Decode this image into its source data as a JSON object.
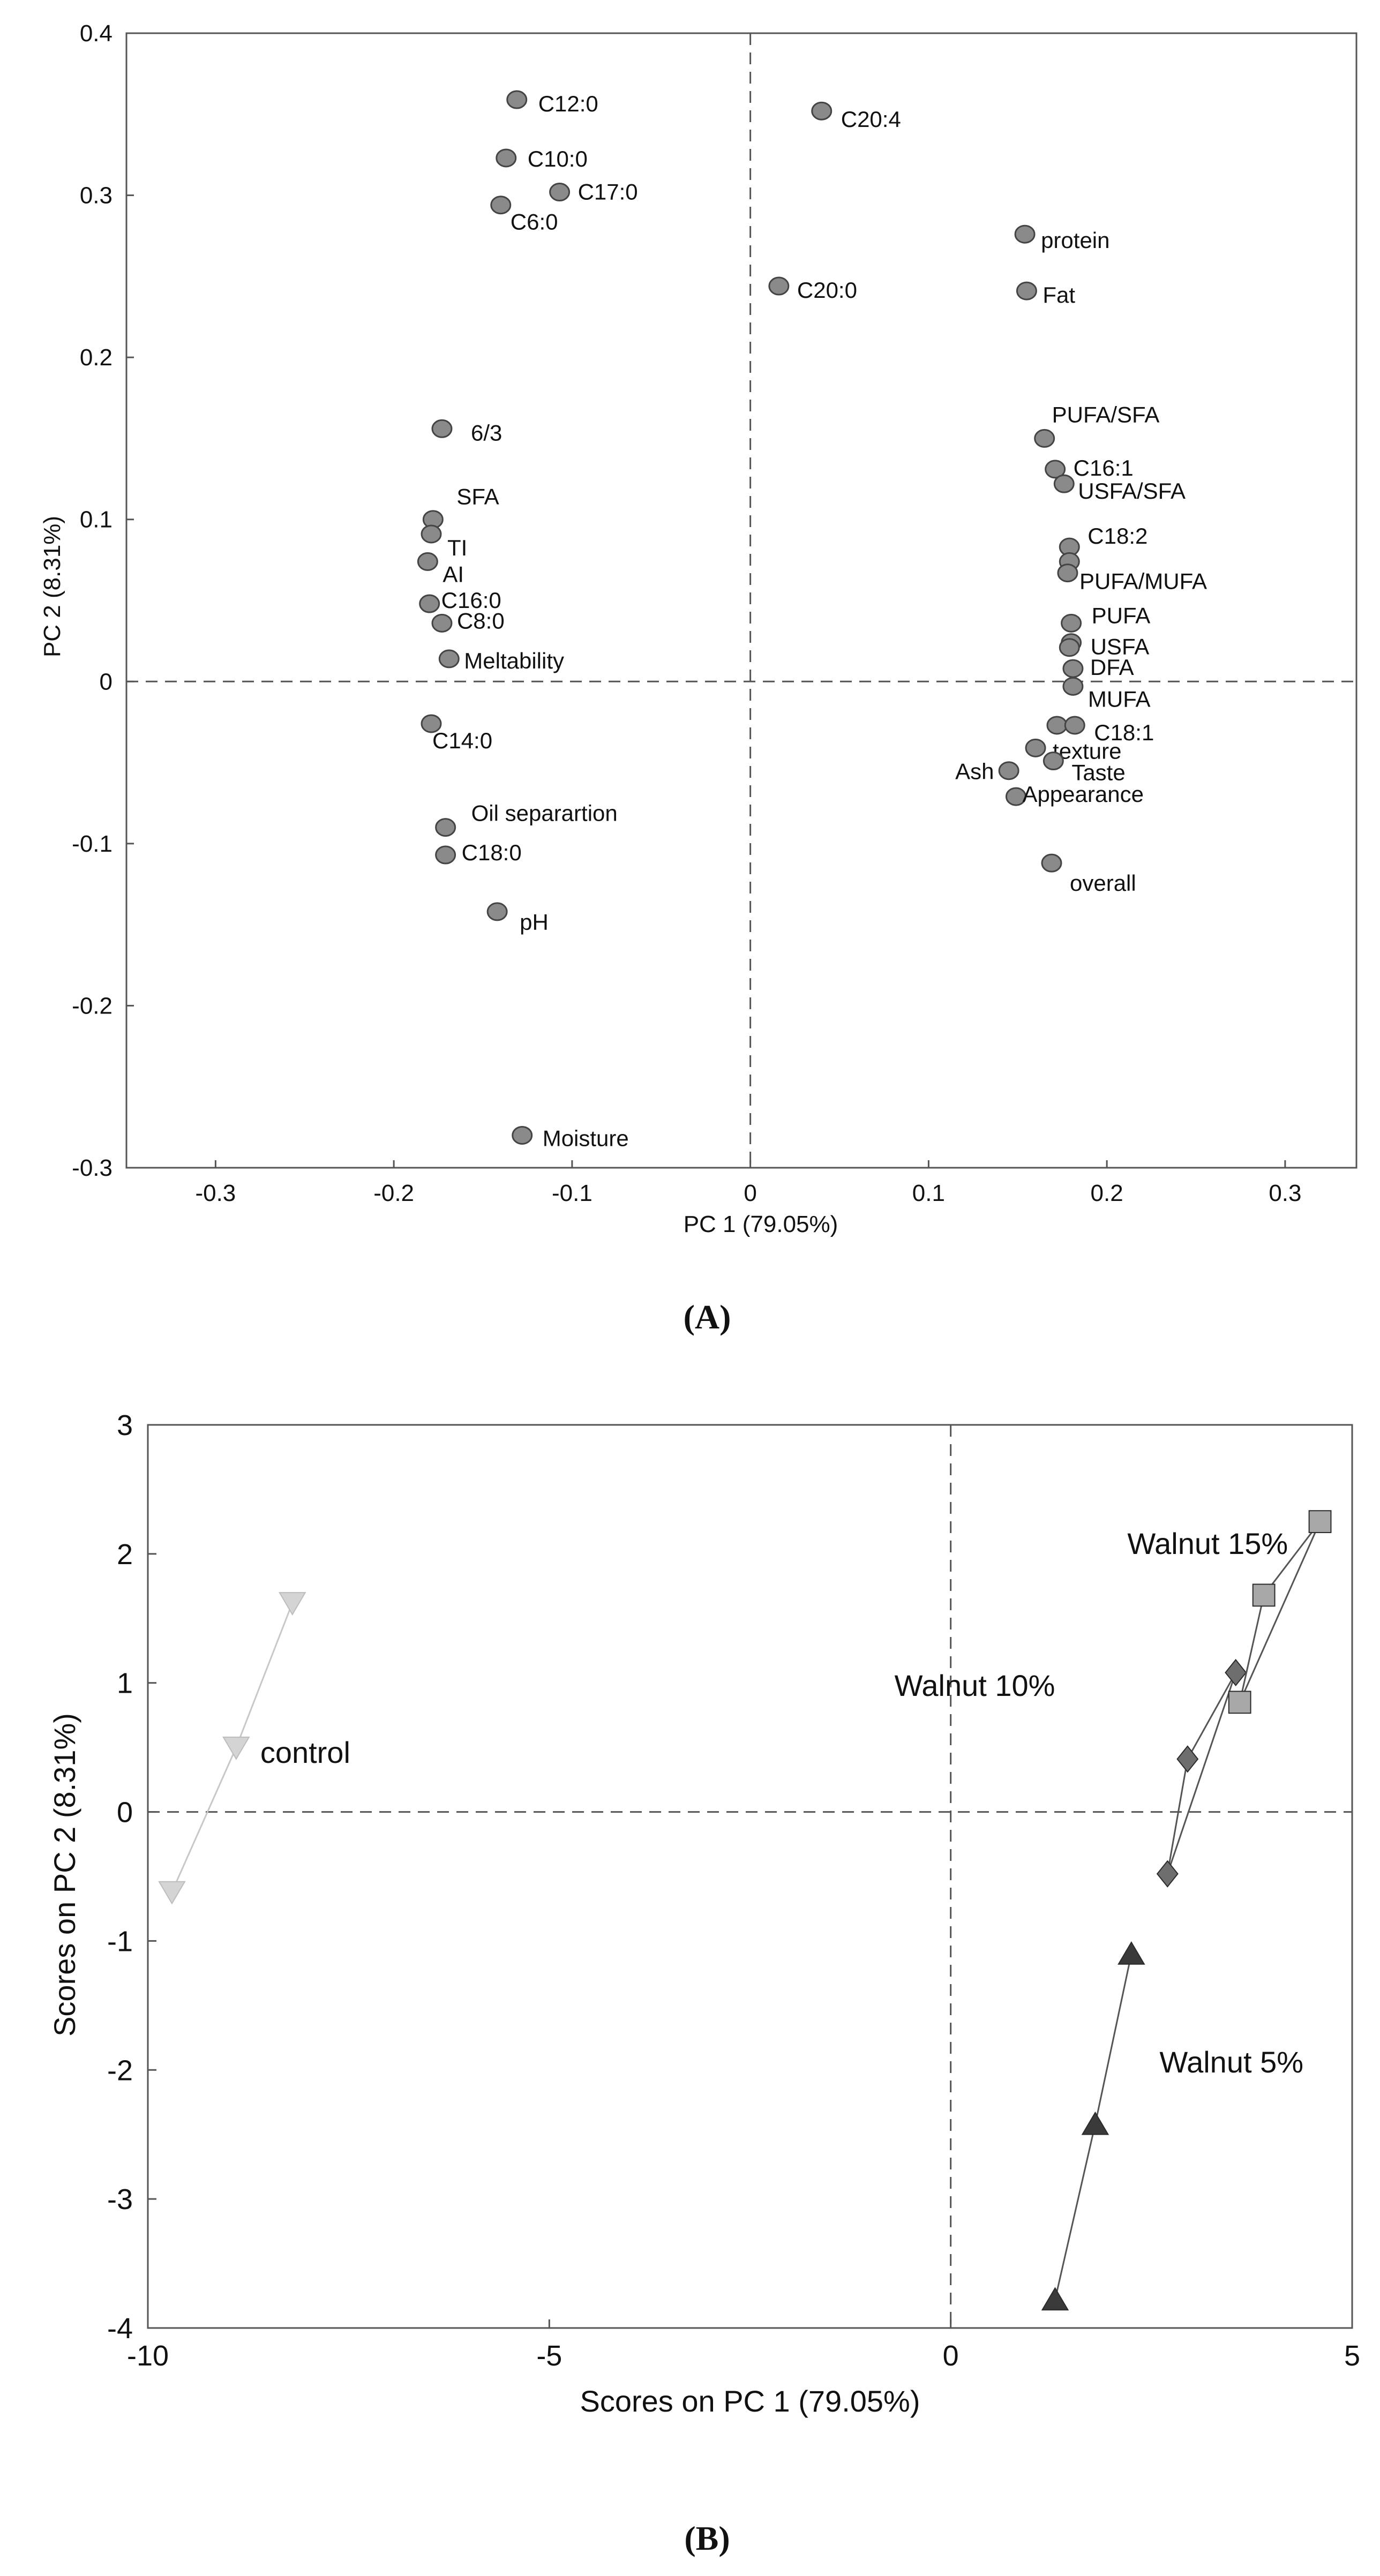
{
  "chart_data": [
    {
      "type": "scatter",
      "panel": "A",
      "caption": "(A)",
      "xlabel": "PC 1 (79.05%)",
      "ylabel": "PC 2 (8.31%)",
      "xlim": [
        -0.35,
        0.34
      ],
      "ylim": [
        -0.3,
        0.4
      ],
      "xticks": [
        "-0.3",
        "-0.2",
        "-0.1",
        "0",
        "0.1",
        "0.2",
        "0.3"
      ],
      "yticks": [
        "-0.3",
        "-0.2",
        "-0.1",
        "0",
        "0.1",
        "0.2",
        "0.3",
        "0.4"
      ],
      "reference_lines": {
        "x": 0,
        "y": 0,
        "style": "dashed"
      },
      "points": [
        {
          "label": "C12:0",
          "x": -0.131,
          "y": 0.359
        },
        {
          "label": "C10:0",
          "x": -0.137,
          "y": 0.323
        },
        {
          "label": "C17:0",
          "x": -0.107,
          "y": 0.302
        },
        {
          "label": "C6:0",
          "x": -0.14,
          "y": 0.294
        },
        {
          "label": "C20:4",
          "x": 0.04,
          "y": 0.352
        },
        {
          "label": "protein",
          "x": 0.154,
          "y": 0.276
        },
        {
          "label": "C20:0",
          "x": 0.016,
          "y": 0.244
        },
        {
          "label": "Fat",
          "x": 0.155,
          "y": 0.241
        },
        {
          "label": "6/3",
          "x": -0.173,
          "y": 0.156
        },
        {
          "label": "SFA",
          "x": -0.178,
          "y": 0.1
        },
        {
          "label": "TI",
          "x": -0.179,
          "y": 0.091
        },
        {
          "label": "AI",
          "x": -0.181,
          "y": 0.074
        },
        {
          "label": "C16:0",
          "x": -0.18,
          "y": 0.048
        },
        {
          "label": "C8:0",
          "x": -0.173,
          "y": 0.036
        },
        {
          "label": "Meltability",
          "x": -0.169,
          "y": 0.014
        },
        {
          "label": "C14:0",
          "x": -0.179,
          "y": -0.026
        },
        {
          "label": "Oil separartion",
          "x": -0.171,
          "y": -0.09
        },
        {
          "label": "C18:0",
          "x": -0.171,
          "y": -0.107
        },
        {
          "label": "pH",
          "x": -0.142,
          "y": -0.142
        },
        {
          "label": "Moisture",
          "x": -0.128,
          "y": -0.28
        },
        {
          "label": "PUFA/SFA",
          "x": 0.165,
          "y": 0.15
        },
        {
          "label": "C16:1",
          "x": 0.171,
          "y": 0.131
        },
        {
          "label": "USFA/SFA",
          "x": 0.176,
          "y": 0.122
        },
        {
          "label": "C18:2",
          "x": 0.179,
          "y": 0.083
        },
        {
          "label": "",
          "x": 0.179,
          "y": 0.074
        },
        {
          "label": "PUFA/MUFA",
          "x": 0.178,
          "y": 0.067
        },
        {
          "label": "PUFA",
          "x": 0.18,
          "y": 0.036
        },
        {
          "label": "USFA",
          "x": 0.18,
          "y": 0.024
        },
        {
          "label": "",
          "x": 0.179,
          "y": 0.021
        },
        {
          "label": "DFA",
          "x": 0.181,
          "y": 0.008
        },
        {
          "label": "MUFA",
          "x": 0.181,
          "y": -0.003
        },
        {
          "label": "",
          "x": 0.172,
          "y": -0.027
        },
        {
          "label": "C18:1",
          "x": 0.182,
          "y": -0.027
        },
        {
          "label": "texture",
          "x": 0.16,
          "y": -0.041
        },
        {
          "label": "Ash",
          "x": 0.145,
          "y": -0.055
        },
        {
          "label": "Taste",
          "x": 0.17,
          "y": -0.049
        },
        {
          "label": "Appearance",
          "x": 0.149,
          "y": -0.071
        },
        {
          "label": "overall",
          "x": 0.169,
          "y": -0.112
        }
      ]
    },
    {
      "type": "scatter",
      "panel": "B",
      "caption": "(B)",
      "xlabel": "Scores on PC 1 (79.05%)",
      "ylabel": "Scores on PC 2 (8.31%)",
      "xlim": [
        -10,
        5
      ],
      "ylim": [
        -4,
        3
      ],
      "xticks": [
        "-10",
        "-5",
        "0",
        "5"
      ],
      "yticks": [
        "-4",
        "-3",
        "-2",
        "-1",
        "0",
        "1",
        "2",
        "3"
      ],
      "reference_lines": {
        "x": 0,
        "y": 0,
        "style": "dashed"
      },
      "series": [
        {
          "name": "control",
          "marker": "triangle-down",
          "color": "#d4d4d4",
          "x": [
            -9.7,
            -8.9,
            -8.2
          ],
          "y": [
            -0.62,
            0.5,
            1.62
          ]
        },
        {
          "name": "Walnut 5%",
          "marker": "triangle-up",
          "color": "#3a3a3a",
          "x": [
            1.3,
            1.8,
            2.25
          ],
          "y": [
            -3.78,
            -2.42,
            -1.1
          ]
        },
        {
          "name": "Walnut 10%",
          "marker": "diamond",
          "color": "#6e6e6e",
          "x": [
            2.7,
            2.95,
            3.55
          ],
          "y": [
            -0.48,
            0.41,
            1.08
          ]
        },
        {
          "name": "Walnut 15%",
          "marker": "square",
          "color": "#a8a8a8",
          "x": [
            3.6,
            3.9,
            4.6
          ],
          "y": [
            0.85,
            1.68,
            2.25
          ]
        }
      ]
    }
  ]
}
